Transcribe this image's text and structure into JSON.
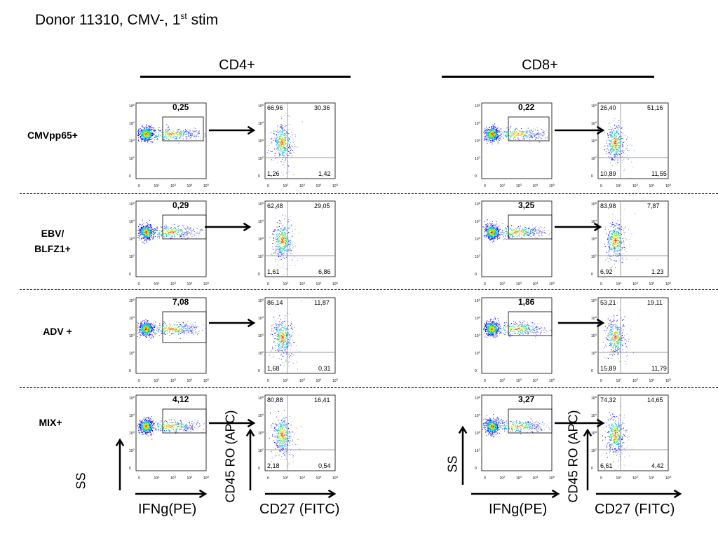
{
  "title": {
    "main": "Donor 11310, CMV-, 1",
    "sup": "st",
    "tail": " stim"
  },
  "columns": [
    {
      "label": "CD4+"
    },
    {
      "label": "CD8+"
    }
  ],
  "rows": [
    {
      "label": "CMVpp65+"
    },
    {
      "label": "EBV/\nBLFZ1+"
    },
    {
      "label": "ADV +"
    },
    {
      "label": "MIX+"
    }
  ],
  "axis_labels": {
    "ss": "SS",
    "ifng": "IFNg(PE)",
    "cd45": "CD45 RO (APC)",
    "cd27": "CD27 (FITC)"
  },
  "tick_labels": [
    "0",
    "10",
    "10",
    "10",
    "10"
  ],
  "tick_exponents": [
    "",
    "2",
    "3",
    "4",
    "5"
  ],
  "chart_data": {
    "type": "scatter",
    "ifng_gate": [
      {
        "row": "CMVpp65+",
        "CD4+": "0,25",
        "CD8+": "0,22"
      },
      {
        "row": "EBV/BLFZ1+",
        "CD4+": "0,29",
        "CD8+": "3,25"
      },
      {
        "row": "ADV +",
        "CD4+": "7,08",
        "CD8+": "1,86"
      },
      {
        "row": "MIX+",
        "CD4+": "4,12",
        "CD8+": "3,27"
      }
    ],
    "quadrants": [
      {
        "row": "CMVpp65+",
        "column": "CD4+",
        "ul": "66,96",
        "ur": "30,36",
        "ll": "1,26",
        "lr": "1,42"
      },
      {
        "row": "CMVpp65+",
        "column": "CD8+",
        "ul": "26,40",
        "ur": "51,16",
        "ll": "10,89",
        "lr": "11,55"
      },
      {
        "row": "EBV/BLFZ1+",
        "column": "CD4+",
        "ul": "62,48",
        "ur": "29,05",
        "ll": "1,61",
        "lr": "6,86"
      },
      {
        "row": "EBV/BLFZ1+",
        "column": "CD8+",
        "ul": "83,98",
        "ur": "7,87",
        "ll": "6,92",
        "lr": "1,23"
      },
      {
        "row": "ADV +",
        "column": "CD4+",
        "ul": "86,14",
        "ur": "11,87",
        "ll": "1,68",
        "lr": "0,31"
      },
      {
        "row": "ADV +",
        "column": "CD8+",
        "ul": "53,21",
        "ur": "19,11",
        "ll": "15,89",
        "lr": "11,79"
      },
      {
        "row": "MIX+",
        "column": "CD4+",
        "ul": "80,88",
        "ur": "16,41",
        "ll": "2,18",
        "lr": "0,54"
      },
      {
        "row": "MIX+",
        "column": "CD8+",
        "ul": "74,32",
        "ur": "14,65",
        "ll": "6,61",
        "lr": "4,42"
      }
    ]
  }
}
